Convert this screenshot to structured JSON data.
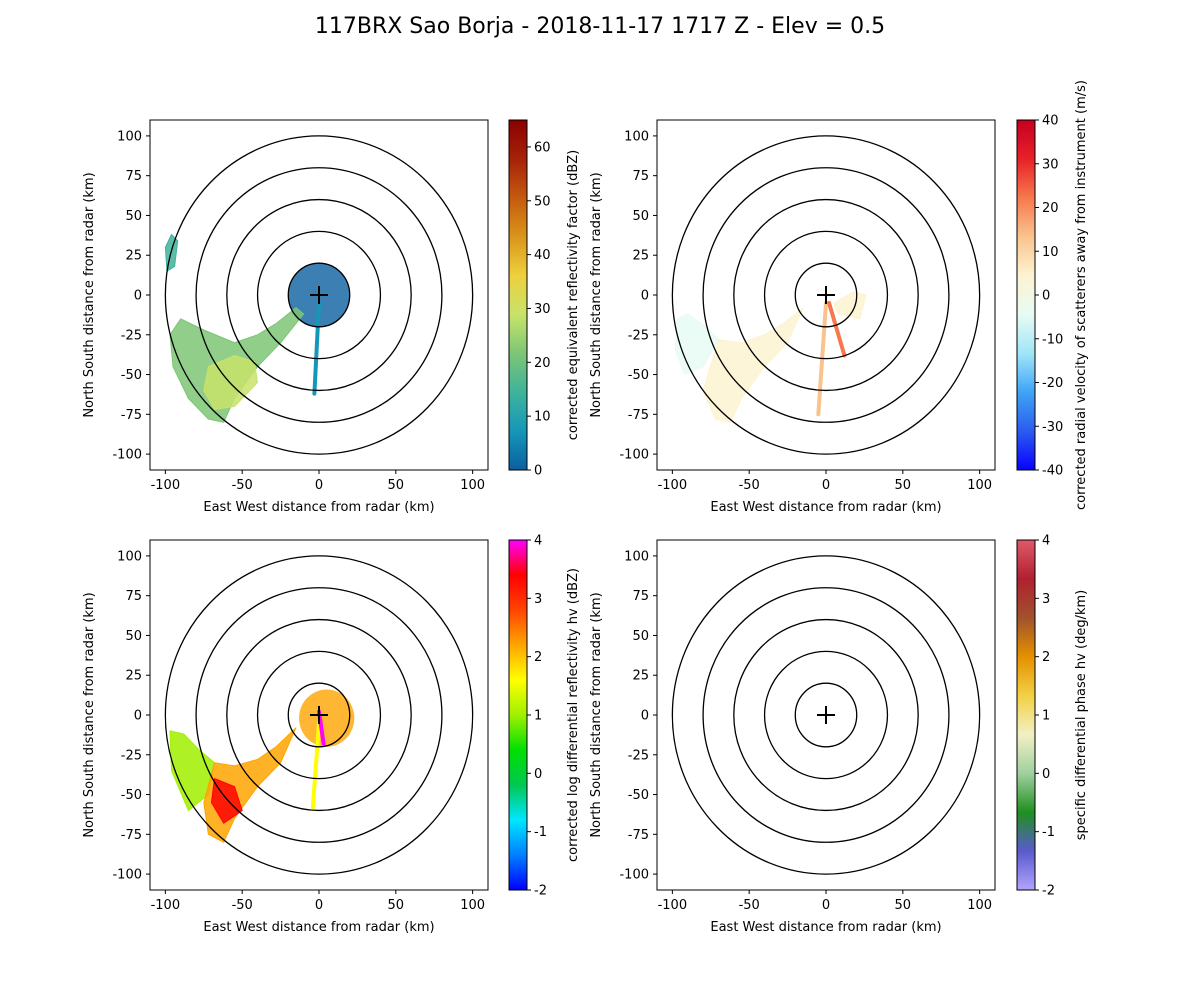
{
  "figure": {
    "title": "117BRX Sao Borja - 2018-11-17 1717 Z -  Elev = 0.5"
  },
  "chart_data": [
    {
      "type": "heatmap",
      "name": "reflectivity",
      "xlabel": "East West distance from radar (km)",
      "ylabel": "North South distance from radar (km)",
      "xlim": [
        -110,
        110
      ],
      "ylim": [
        -110,
        110
      ],
      "xticks": [
        -100,
        -50,
        0,
        50,
        100
      ],
      "yticks": [
        -100,
        -75,
        -50,
        -25,
        0,
        25,
        50,
        75,
        100
      ],
      "range_rings_km": [
        20,
        40,
        60,
        80,
        100
      ],
      "colorbar": {
        "label": "corrected equivalent reflectivity factor (dBZ)",
        "min": 0,
        "max": 65,
        "ticks": [
          0,
          10,
          20,
          30,
          40,
          50,
          60
        ],
        "colors": [
          "#0a5fa0",
          "#1597b8",
          "#3fb39b",
          "#7cc675",
          "#c8e36a",
          "#eed03d",
          "#d9951a",
          "#c45a0e",
          "#a62208",
          "#8b0000"
        ]
      },
      "echoes": [
        {
          "type": "disc",
          "x": 0,
          "y": 0,
          "r": 20,
          "value": 3
        },
        {
          "type": "region",
          "points": [
            [
              -97,
              -25
            ],
            [
              -90,
              -15
            ],
            [
              -75,
              -22
            ],
            [
              -55,
              -30
            ],
            [
              -40,
              -25
            ],
            [
              -28,
              -18
            ],
            [
              -15,
              -8
            ],
            [
              -10,
              -12
            ],
            [
              -25,
              -30
            ],
            [
              -40,
              -45
            ],
            [
              -55,
              -65
            ],
            [
              -62,
              -80
            ],
            [
              -72,
              -78
            ],
            [
              -85,
              -65
            ],
            [
              -95,
              -45
            ]
          ],
          "value": 20
        },
        {
          "type": "region",
          "points": [
            [
              -72,
              -45
            ],
            [
              -55,
              -38
            ],
            [
              -42,
              -42
            ],
            [
              -40,
              -55
            ],
            [
              -55,
              -70
            ],
            [
              -68,
              -72
            ],
            [
              -75,
              -60
            ]
          ],
          "value": 32
        },
        {
          "type": "region",
          "points": [
            [
              -100,
              30
            ],
            [
              -96,
              38
            ],
            [
              -92,
              34
            ],
            [
              -94,
              18
            ],
            [
              -99,
              15
            ]
          ],
          "value": 16
        },
        {
          "type": "spoke",
          "x0": 0,
          "y0": -5,
          "x1": -3,
          "y1": -62,
          "value": 8
        }
      ]
    },
    {
      "type": "heatmap",
      "name": "velocity",
      "xlabel": "East West distance from radar (km)",
      "ylabel": "North South distance from radar (km)",
      "xlim": [
        -110,
        110
      ],
      "ylim": [
        -110,
        110
      ],
      "xticks": [
        -100,
        -50,
        0,
        50,
        100
      ],
      "yticks": [
        -100,
        -75,
        -50,
        -25,
        0,
        25,
        50,
        75,
        100
      ],
      "range_rings_km": [
        20,
        40,
        60,
        80,
        100
      ],
      "colorbar": {
        "label": "corrected radial velocity of scatterers away from instrument (m/s)",
        "min": -40,
        "max": 40,
        "ticks": [
          -40,
          -30,
          -20,
          -10,
          0,
          10,
          20,
          30,
          40
        ],
        "colors": [
          "#0a00ff",
          "#2a5cf0",
          "#3fa4f5",
          "#9fe6f7",
          "#e8fbf4",
          "#fdf3d1",
          "#f9c38d",
          "#f7784d",
          "#e82128",
          "#c40020"
        ]
      },
      "echoes": [
        {
          "type": "region",
          "points": [
            [
              -97,
              -15
            ],
            [
              -90,
              -12
            ],
            [
              -78,
              -20
            ],
            [
              -70,
              -28
            ],
            [
              -80,
              -45
            ],
            [
              -92,
              -50
            ],
            [
              -98,
              -35
            ]
          ],
          "value": -8
        },
        {
          "type": "region",
          "points": [
            [
              -70,
              -28
            ],
            [
              -55,
              -30
            ],
            [
              -40,
              -25
            ],
            [
              -28,
              -18
            ],
            [
              -15,
              -8
            ],
            [
              -25,
              -30
            ],
            [
              -40,
              -45
            ],
            [
              -55,
              -65
            ],
            [
              -62,
              -80
            ],
            [
              -72,
              -78
            ],
            [
              -80,
              -60
            ]
          ],
          "value": 3
        },
        {
          "type": "region",
          "points": [
            [
              5,
              -5
            ],
            [
              18,
              2
            ],
            [
              26,
              0
            ],
            [
              22,
              -15
            ],
            [
              8,
              -12
            ]
          ],
          "value": 3
        },
        {
          "type": "spoke",
          "x0": 0,
          "y0": -5,
          "x1": -5,
          "y1": -75,
          "value": 14
        },
        {
          "type": "spoke",
          "x0": 2,
          "y0": -5,
          "x1": 12,
          "y1": -38,
          "value": 25
        }
      ]
    },
    {
      "type": "heatmap",
      "name": "differential_reflectivity",
      "xlabel": "East West distance from radar (km)",
      "ylabel": "North South distance from radar (km)",
      "xlim": [
        -110,
        110
      ],
      "ylim": [
        -110,
        110
      ],
      "xticks": [
        -100,
        -50,
        0,
        50,
        100
      ],
      "yticks": [
        -100,
        -75,
        -50,
        -25,
        0,
        25,
        50,
        75,
        100
      ],
      "range_rings_km": [
        20,
        40,
        60,
        80,
        100
      ],
      "colorbar": {
        "label": "corrected log differential reflectivity hv (dBZ)",
        "min": -2,
        "max": 4,
        "ticks": [
          -2,
          -1,
          0,
          1,
          2,
          3,
          4
        ],
        "colors": [
          "#0000ff",
          "#0080ff",
          "#00e6ff",
          "#00c853",
          "#00e000",
          "#a0f000",
          "#ffff00",
          "#ffa500",
          "#ff4500",
          "#ff0000",
          "#ff00ff"
        ]
      },
      "echoes": [
        {
          "type": "region",
          "points": [
            [
              -97,
              -10
            ],
            [
              -88,
              -12
            ],
            [
              -78,
              -22
            ],
            [
              -68,
              -30
            ],
            [
              -72,
              -50
            ],
            [
              -85,
              -60
            ],
            [
              -96,
              -35
            ]
          ],
          "value": 0.9
        },
        {
          "type": "region",
          "points": [
            [
              -68,
              -30
            ],
            [
              -55,
              -32
            ],
            [
              -40,
              -28
            ],
            [
              -28,
              -20
            ],
            [
              -15,
              -8
            ],
            [
              -25,
              -30
            ],
            [
              -40,
              -45
            ],
            [
              -55,
              -65
            ],
            [
              -62,
              -80
            ],
            [
              -72,
              -75
            ],
            [
              -75,
              -55
            ]
          ],
          "value": 2.3
        },
        {
          "type": "region",
          "points": [
            [
              -68,
              -40
            ],
            [
              -55,
              -45
            ],
            [
              -50,
              -60
            ],
            [
              -62,
              -68
            ],
            [
              -70,
              -55
            ]
          ],
          "value": 3.2
        },
        {
          "type": "disc",
          "x": 5,
          "y": -2,
          "r": 18,
          "value": 2.1
        },
        {
          "type": "spoke",
          "x0": 0,
          "y0": -5,
          "x1": -4,
          "y1": -58,
          "value": 1.7
        },
        {
          "type": "spoke",
          "x0": 0,
          "y0": 2,
          "x1": 3,
          "y1": -18,
          "value": 3.8
        }
      ]
    },
    {
      "type": "heatmap",
      "name": "specific_differential_phase",
      "xlabel": "East West distance from radar (km)",
      "ylabel": "North South distance from radar (km)",
      "xlim": [
        -110,
        110
      ],
      "ylim": [
        -110,
        110
      ],
      "xticks": [
        -100,
        -50,
        0,
        50,
        100
      ],
      "yticks": [
        -100,
        -75,
        -50,
        -25,
        0,
        25,
        50,
        75,
        100
      ],
      "range_rings_km": [
        20,
        40,
        60,
        80,
        100
      ],
      "colorbar": {
        "label": "specific differential phase hv (deg/km)",
        "min": -2,
        "max": 4,
        "ticks": [
          -2,
          -1,
          0,
          1,
          2,
          3,
          4
        ],
        "colors": [
          "#b2a4ff",
          "#5a5acc",
          "#1f8f1f",
          "#9fd09f",
          "#f2f0c4",
          "#f2d044",
          "#e49000",
          "#a0522d",
          "#b02030",
          "#e05a6a"
        ]
      },
      "echoes": []
    }
  ]
}
